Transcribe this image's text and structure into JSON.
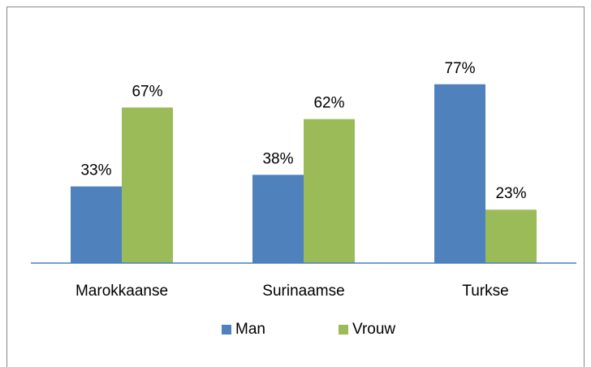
{
  "chart_data": {
    "type": "bar",
    "categories": [
      "Marokkaanse",
      "Surinaamse",
      "Turkse"
    ],
    "series": [
      {
        "name": "Man",
        "color": "#4f81bd",
        "values": [
          33,
          38,
          77
        ],
        "value_labels": [
          "33%",
          "38%",
          "77%"
        ]
      },
      {
        "name": "Vrouw",
        "color": "#9bbb59",
        "values": [
          67,
          62,
          23
        ],
        "value_labels": [
          "67%",
          "62%",
          "23%"
        ]
      }
    ],
    "ylim": [
      0,
      100
    ],
    "legend": "bottom"
  }
}
